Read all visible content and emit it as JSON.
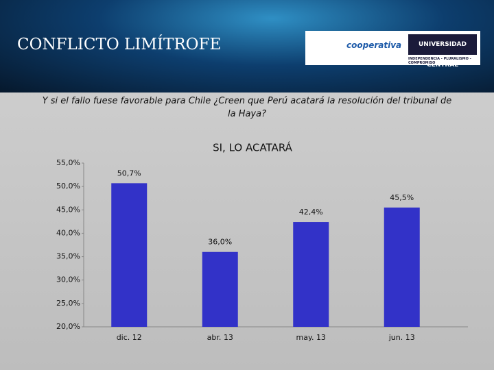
{
  "header": {
    "title": "CONFLICTO LIMÍTROFE",
    "question": "Y si el fallo fuese favorable para Chile ¿Creen que Perú acatará la resolución del tribunal de la Haya?",
    "logos": [
      "cooperativa",
      "UNIVERSIDAD CENTRAL",
      "INDEPENDENCIA - PLURALISMO - COMPROMISO"
    ]
  },
  "chart_data": {
    "type": "bar",
    "title": "SI, LO ACATARÁ",
    "categories": [
      "dic. 12",
      "abr. 13",
      "may. 13",
      "jun. 13"
    ],
    "values": [
      50.7,
      36.0,
      42.4,
      45.5
    ],
    "value_labels": [
      "50,7%",
      "36,0%",
      "42,4%",
      "45,5%"
    ],
    "color": "#3232c8",
    "ylim": [
      20,
      55
    ],
    "yticks": [
      {
        "value": 20,
        "label": "20,0%"
      },
      {
        "value": 25,
        "label": "25,0%"
      },
      {
        "value": 30,
        "label": "30,0%"
      },
      {
        "value": 35,
        "label": "35,0%"
      },
      {
        "value": 40,
        "label": "40,0%"
      },
      {
        "value": 45,
        "label": "45,0%"
      },
      {
        "value": 50,
        "label": "50,0%"
      },
      {
        "value": 55,
        "label": "55,0%"
      }
    ]
  }
}
